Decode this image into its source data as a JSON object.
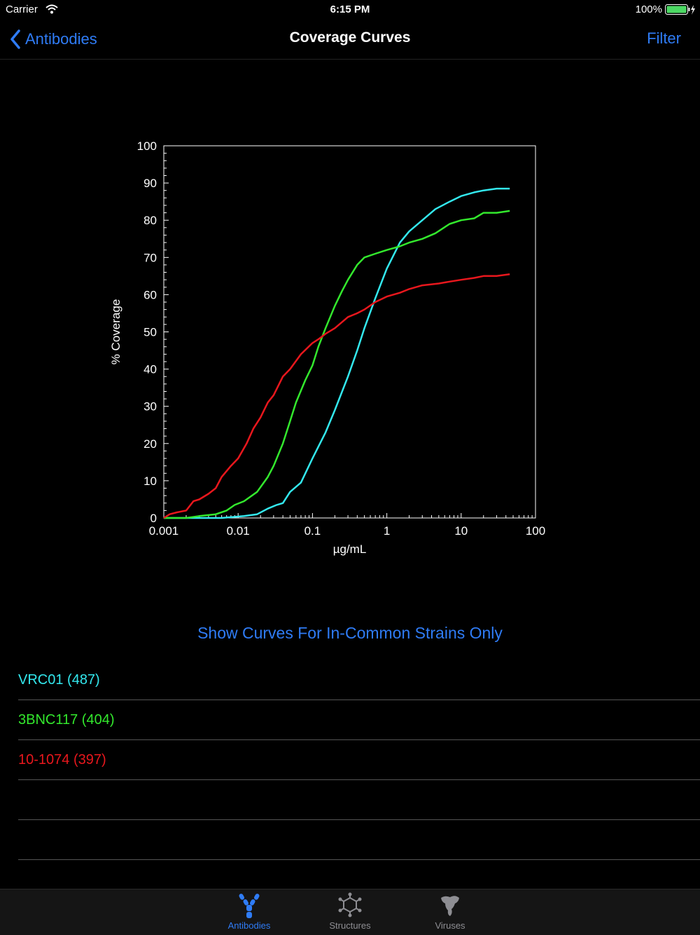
{
  "status_bar": {
    "carrier": "Carrier",
    "time": "6:15 PM",
    "battery": "100%"
  },
  "nav": {
    "back_label": "Antibodies",
    "title": "Coverage Curves",
    "filter_label": "Filter"
  },
  "toggle_label": "Show Curves For In-Common Strains Only",
  "antibodies": [
    {
      "label": "VRC01 (487)",
      "color": "#33e8ee"
    },
    {
      "label": "3BNC117 (404)",
      "color": "#33e82d"
    },
    {
      "label": "10-1074 (397)",
      "color": "#e8171d"
    },
    {
      "label": "",
      "color": "#ffffff"
    },
    {
      "label": "",
      "color": "#ffffff"
    }
  ],
  "tabs": [
    {
      "label": "Antibodies",
      "icon": "antibody-icon",
      "active": true
    },
    {
      "label": "Structures",
      "icon": "molecule-icon",
      "active": false
    },
    {
      "label": "Viruses",
      "icon": "virus-icon",
      "active": false
    }
  ],
  "chart_data": {
    "type": "line",
    "xlabel": "µg/mL",
    "ylabel": "% Coverage",
    "xscale": "log",
    "xlim": [
      0.001,
      100
    ],
    "ylim": [
      0,
      100
    ],
    "xticks": [
      0.001,
      0.01,
      0.1,
      1,
      10,
      100
    ],
    "xtick_labels": [
      "0.001",
      "0.01",
      "0.1",
      "1",
      "10",
      "100"
    ],
    "yticks": [
      0,
      10,
      20,
      30,
      40,
      50,
      60,
      70,
      80,
      90,
      100
    ],
    "ytick_labels": [
      "0",
      "10",
      "20",
      "30",
      "40",
      "50",
      "60",
      "70",
      "80",
      "90",
      "100"
    ],
    "grid": false,
    "series": [
      {
        "name": "VRC01",
        "color": "#33e8ee",
        "x": [
          0.001,
          0.003,
          0.006,
          0.012,
          0.018,
          0.025,
          0.033,
          0.04,
          0.05,
          0.07,
          0.1,
          0.15,
          0.2,
          0.3,
          0.4,
          0.5,
          0.7,
          1,
          1.5,
          2,
          3,
          4.5,
          7,
          10,
          15,
          20,
          30,
          45
        ],
        "y": [
          0,
          0,
          0,
          0.5,
          1,
          2.5,
          3.5,
          4,
          7,
          9.5,
          16,
          23,
          29,
          38,
          45,
          51,
          59,
          67,
          74,
          77,
          80,
          83,
          85,
          86.5,
          87.5,
          88,
          88.5,
          88.5
        ]
      },
      {
        "name": "3BNC117",
        "color": "#33e82d",
        "x": [
          0.001,
          0.002,
          0.003,
          0.005,
          0.007,
          0.009,
          0.012,
          0.018,
          0.025,
          0.03,
          0.04,
          0.05,
          0.06,
          0.08,
          0.1,
          0.12,
          0.15,
          0.2,
          0.25,
          0.3,
          0.4,
          0.5,
          0.7,
          1,
          1.5,
          2,
          3,
          4.5,
          7,
          10,
          15,
          20,
          30,
          45
        ],
        "y": [
          0,
          0,
          0.5,
          1,
          2,
          3.5,
          4.5,
          7,
          11,
          14,
          20,
          26,
          31,
          37,
          41,
          46,
          51,
          57,
          61,
          64,
          68,
          70,
          71,
          72,
          73,
          74,
          75,
          76.5,
          79,
          80,
          80.5,
          82,
          82,
          82.5
        ]
      },
      {
        "name": "10-1074",
        "color": "#e8171d",
        "x": [
          0.001,
          0.0012,
          0.0015,
          0.002,
          0.0025,
          0.003,
          0.004,
          0.005,
          0.006,
          0.008,
          0.01,
          0.013,
          0.016,
          0.02,
          0.025,
          0.03,
          0.04,
          0.05,
          0.07,
          0.1,
          0.12,
          0.15,
          0.2,
          0.3,
          0.4,
          0.5,
          0.7,
          1,
          1.5,
          2,
          3,
          5,
          7,
          10,
          15,
          20,
          30,
          45
        ],
        "y": [
          0,
          1,
          1.5,
          2,
          4.5,
          5,
          6.5,
          8,
          11,
          14,
          16,
          20,
          24,
          27,
          31,
          33,
          38,
          40,
          44,
          47,
          48,
          49.5,
          51,
          54,
          55,
          56,
          58,
          59.5,
          60.5,
          61.5,
          62.5,
          63,
          63.5,
          64,
          64.5,
          65,
          65,
          65.5
        ]
      }
    ]
  }
}
